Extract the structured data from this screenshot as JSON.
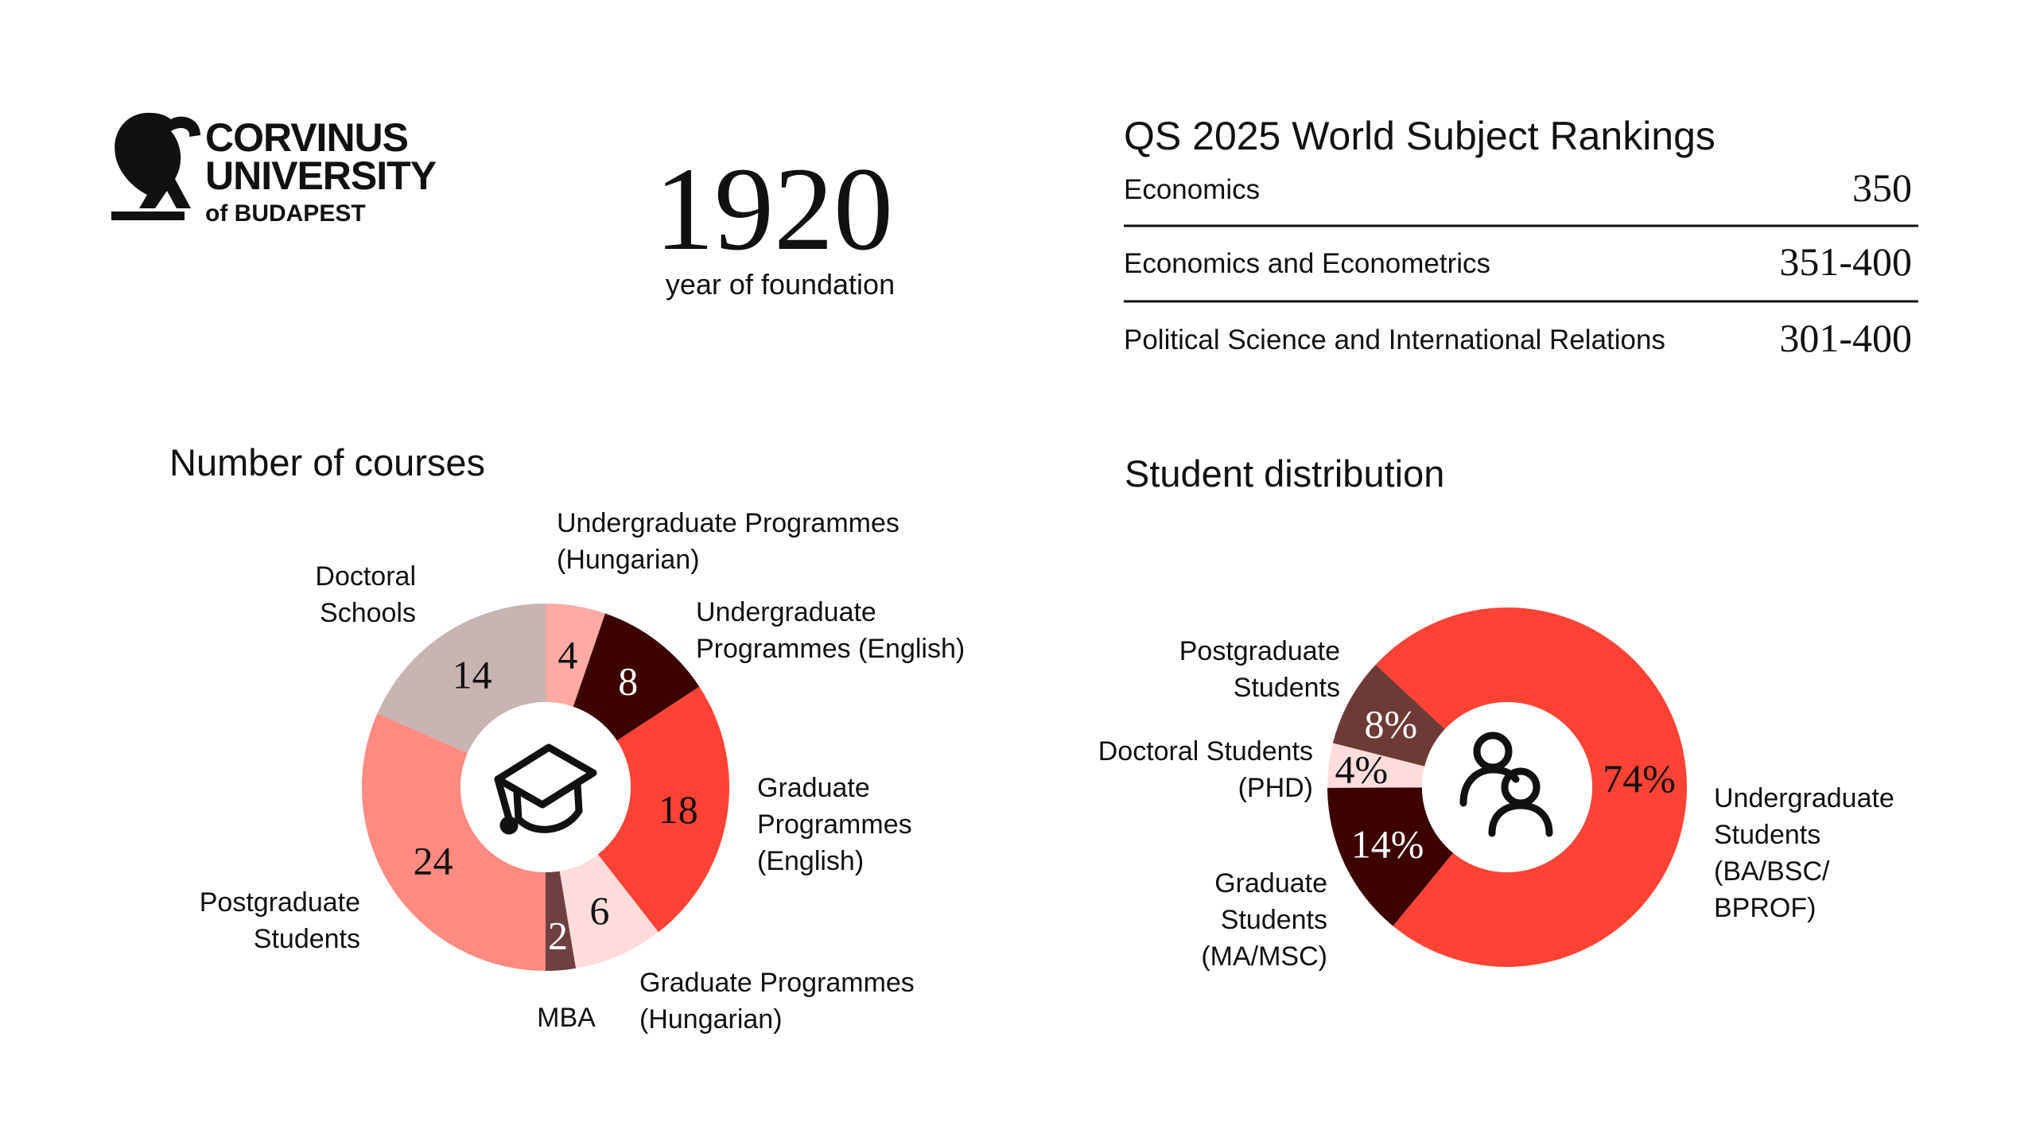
{
  "logo": {
    "line1": "CORVINUS",
    "line2": "UNIVERSITY",
    "line3": "of BUDAPEST"
  },
  "founding": {
    "year": 1920,
    "caption": "year of foundation"
  },
  "rankings": {
    "title": "QS 2025 World Subject Rankings",
    "rows": [
      [
        "Economics",
        350
      ],
      [
        "Economics and Econometrics",
        "351-400"
      ],
      [
        "Political Science and International Relations",
        "301-400"
      ]
    ]
  },
  "chart_data": [
    {
      "type": "donut",
      "title": "Number of courses",
      "categories": [
        "Undergraduate Programmes\n(Hungarian)",
        "Undergraduate\nProgrammes (English)",
        "Graduate\nProgrammes\n(English)",
        "Graduate Programmes\n(Hungarian)",
        "MBA",
        "Postgraduate\nStudents",
        "Doctoral\nSchools"
      ],
      "values": [
        4,
        8,
        18,
        6,
        2,
        24,
        14
      ],
      "colors": [
        "#ffaaa5",
        "#3d0000",
        "#ff4236",
        "#ffdcdc",
        "#6e4040",
        "#ff8a82",
        "#c8b4b2"
      ]
    },
    {
      "type": "donut",
      "title": "Student distribution",
      "categories": [
        "Undergraduate\nStudents\n(BA/BSC/\nBPROF)",
        "Graduate\nStudents\n(MA/MSC)",
        "Doctoral Students\n(PHD)",
        "Postgraduate\nStudents"
      ],
      "values": [
        74,
        14,
        4,
        8
      ],
      "value_labels": [
        "74%",
        "14%",
        "4%",
        "8%"
      ],
      "colors": [
        "#ff4236",
        "#3d0000",
        "#ffdcdc",
        "#6e3a36"
      ]
    }
  ]
}
